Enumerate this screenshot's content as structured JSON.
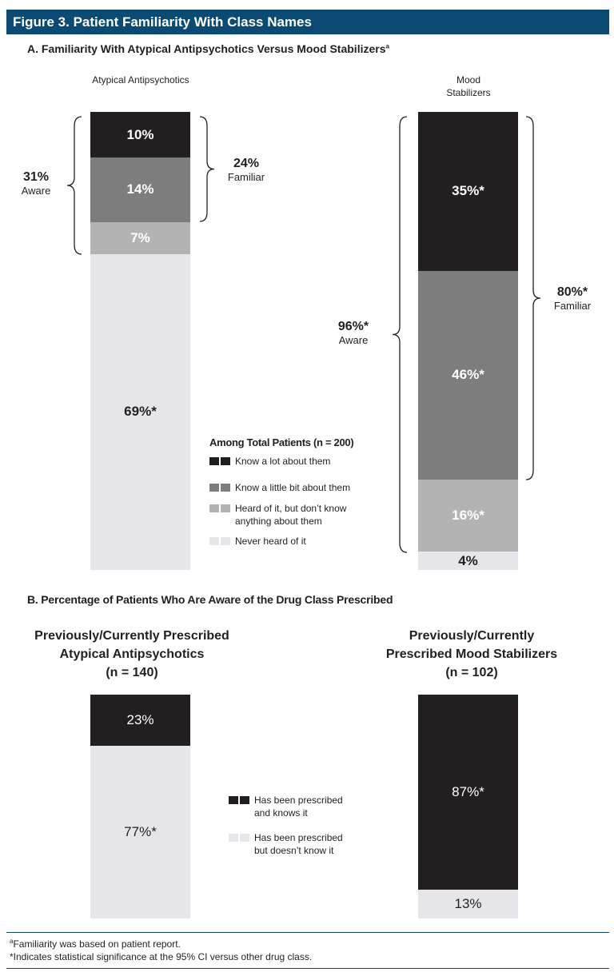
{
  "header": {
    "title": "Figure 3. Patient Familiarity With Class Names"
  },
  "colors": {
    "header": "#0b4a72",
    "know_a_lot": "#231f20",
    "know_a_little": "#7d7d7d",
    "heard_of": "#b3b3b3",
    "never_heard": "#e6e6ea"
  },
  "chart_data": [
    {
      "type": "bar",
      "stacked": true,
      "title": "A. Familiarity With Atypical Antipsychotics Versus Mood Stabilizers",
      "title_footnote": "a",
      "categories": [
        "Atypical Antipsychotics",
        "Mood Stabilizers"
      ],
      "series": [
        {
          "name": "Know a lot about them",
          "values": [
            10,
            35
          ],
          "labels": [
            "10%",
            "35%*"
          ]
        },
        {
          "name": "Know a little bit about them",
          "values": [
            14,
            46
          ],
          "labels": [
            "14%",
            "46%*"
          ]
        },
        {
          "name": "Heard of it, but don't know anything about them",
          "values": [
            7,
            16
          ],
          "labels": [
            "7%",
            "16%*"
          ]
        },
        {
          "name": "Never heard of it",
          "values": [
            69,
            4
          ],
          "labels": [
            "69%*",
            "4%"
          ]
        }
      ],
      "legend_title": "Among Total Patients (n = 200)",
      "legend_items": [
        "Know a lot about them",
        "Know a little bit about them",
        "Heard of it, but don’t know anything about them",
        "Never heard of it"
      ],
      "annotations": [
        {
          "value": "31%",
          "text": "Aware"
        },
        {
          "value": "24%",
          "text": "Familiar"
        },
        {
          "value": "96%*",
          "text": "Aware"
        },
        {
          "value": "80%*",
          "text": "Familiar"
        }
      ]
    },
    {
      "type": "bar",
      "stacked": true,
      "title": "B. Percentage of Patients Who Are Aware of the Drug Class Prescribed",
      "categories": [
        "Previously/Currently Prescribed Atypical Antipsychotics (n = 140)",
        "Previously/Currently Prescribed Mood Stabilizers (n = 102)"
      ],
      "subtitles": [
        [
          "Previously/Currently Prescribed",
          "Atypical Antipsychotics",
          "(n = 140)"
        ],
        [
          "Previously/Currently",
          "Prescribed Mood Stabilizers",
          "(n = 102)"
        ]
      ],
      "series": [
        {
          "name": "Has been prescribed and knows it",
          "values": [
            23,
            87
          ],
          "labels": [
            "23%",
            "87%*"
          ]
        },
        {
          "name": "Has been prescribed but doesn’t know it",
          "values": [
            77,
            13
          ],
          "labels": [
            "77%*",
            "13%"
          ]
        }
      ],
      "legend_items": [
        "Has been prescribed and knows it",
        "Has been prescribed but doesn’t know it"
      ]
    }
  ],
  "footnotes": {
    "a_mark": "a",
    "a": "Familiarity was based on patient report.",
    "star": "*Indicates statistical significance at the 95% CI versus other drug class."
  }
}
